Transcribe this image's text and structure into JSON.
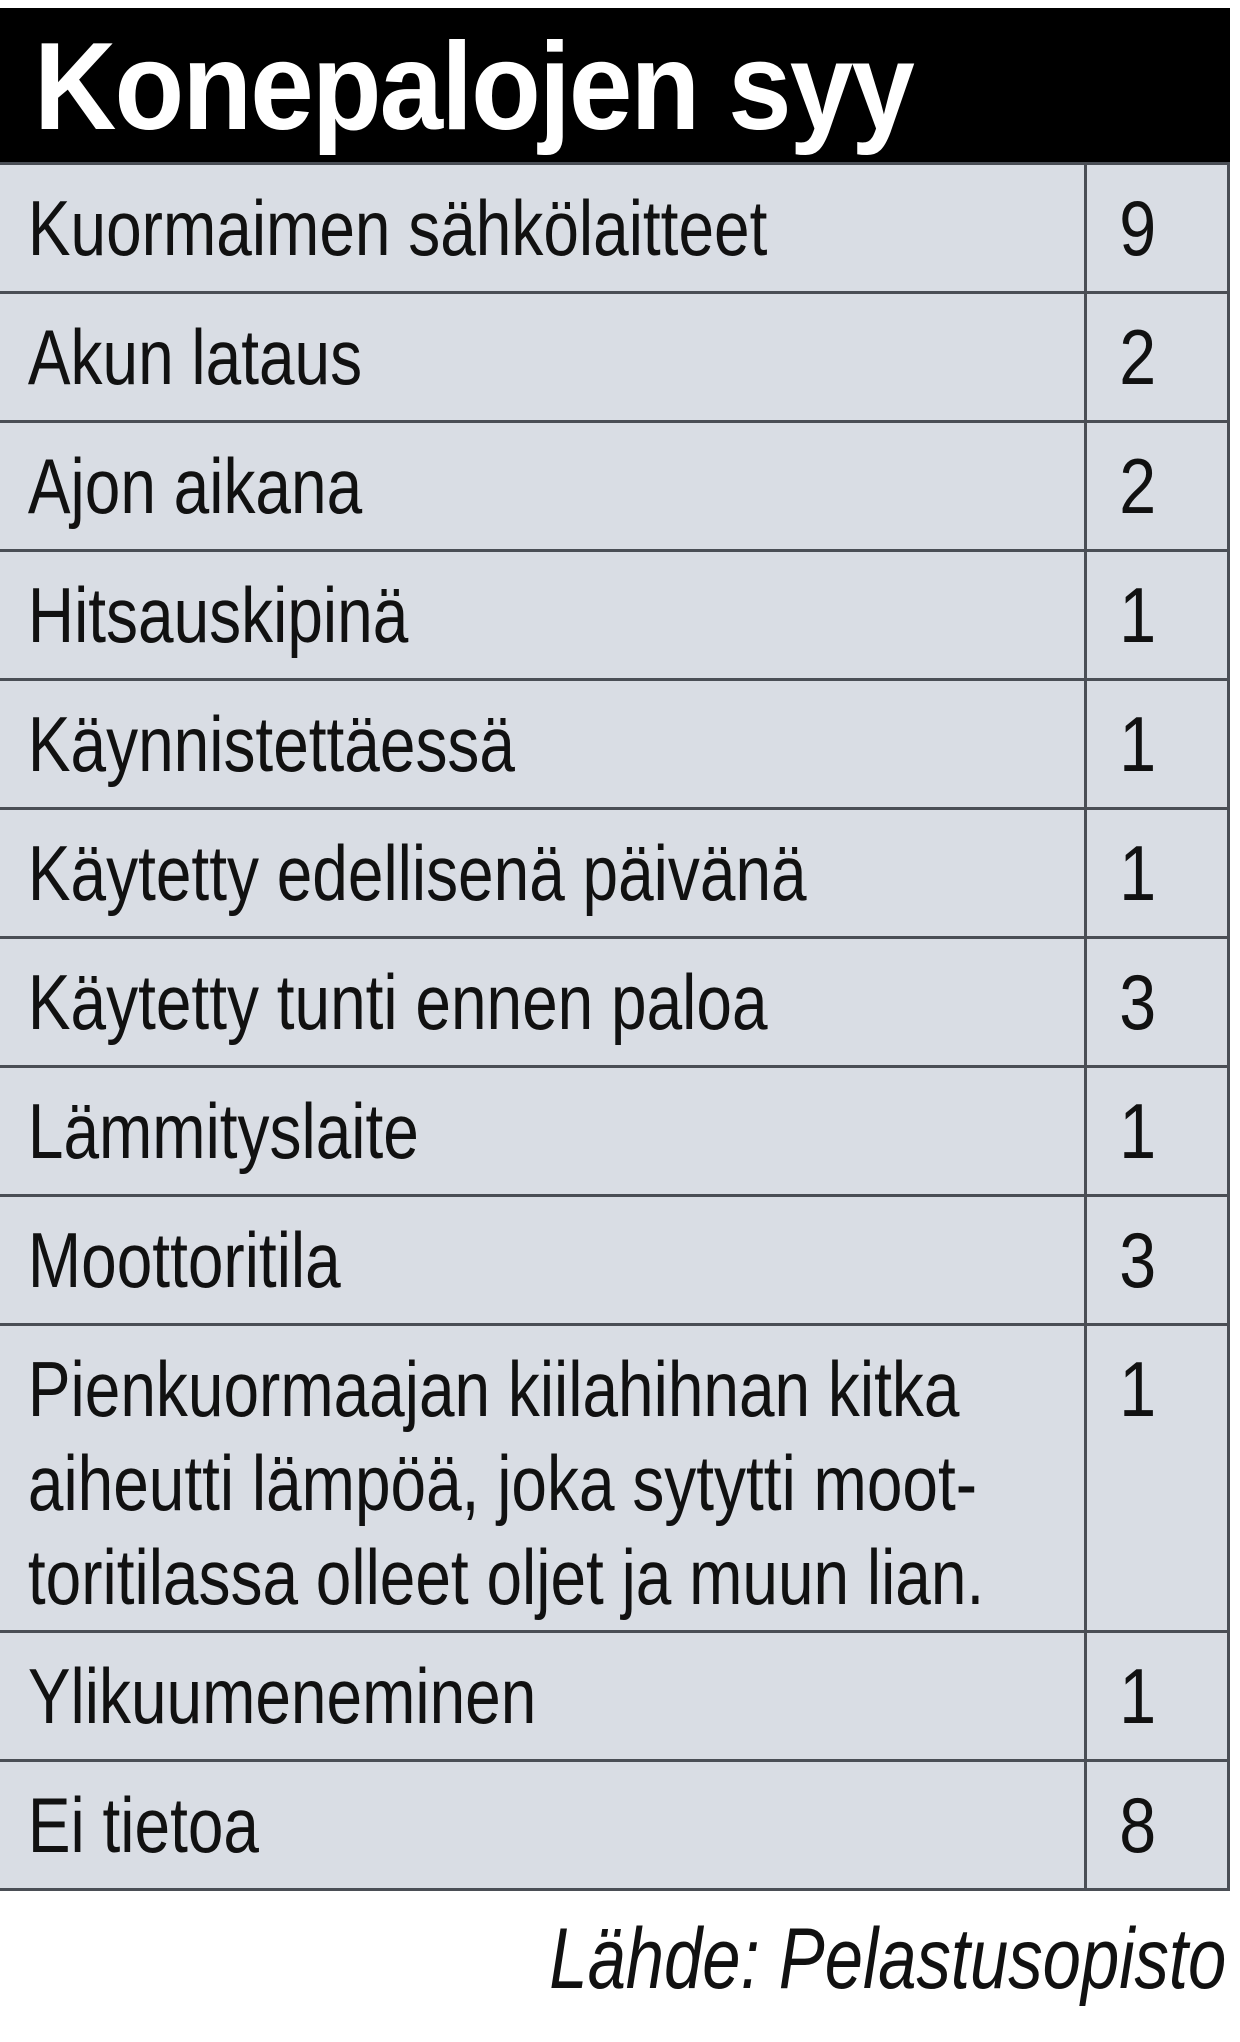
{
  "title": "Konepalojen syy",
  "rows": [
    {
      "cause": "Kuormaimen sähkölaitteet",
      "count": "9"
    },
    {
      "cause": "Akun lataus",
      "count": "2"
    },
    {
      "cause": "Ajon aikana",
      "count": "2"
    },
    {
      "cause": "Hitsauskipinä",
      "count": "1"
    },
    {
      "cause": "Käynnistettäessä",
      "count": "1"
    },
    {
      "cause": "Käytetty edellisenä päivänä",
      "count": "1"
    },
    {
      "cause": "Käytetty tunti ennen paloa",
      "count": "3"
    },
    {
      "cause": "Lämmityslaite",
      "count": "1"
    },
    {
      "cause": "Moottoritila",
      "count": "3"
    },
    {
      "cause": "Pienkuormaajan kiilahihnan kitka\naiheutti lämpöä, joka sytytti moot-\ntoritilassa olleet oljet ja muun lian.",
      "count": "1"
    },
    {
      "cause": "Ylikuumeneminen",
      "count": "1"
    },
    {
      "cause": "Ei tietoa",
      "count": "8"
    }
  ],
  "source": "Lähde: Pelastusopisto",
  "colors": {
    "header_bg": "#000000",
    "row_bg": "#d9dde4",
    "border": "#4a4e55"
  }
}
